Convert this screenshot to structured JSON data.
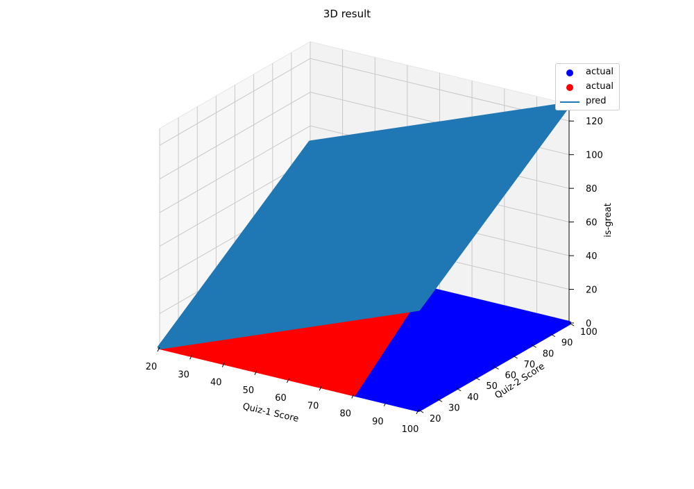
{
  "chart_data": {
    "type": "3d-scatter-surface",
    "title": "3D result",
    "xlabel": "Quiz-1 Score",
    "ylabel": "Quiz-2 Score",
    "zlabel": "is-great",
    "xlim": [
      20,
      100
    ],
    "ylim": [
      20,
      100
    ],
    "zlim": [
      0,
      130
    ],
    "x_ticks": [
      20,
      30,
      40,
      50,
      60,
      70,
      80,
      90,
      100
    ],
    "y_ticks": [
      20,
      30,
      40,
      50,
      60,
      70,
      80,
      90,
      100
    ],
    "z_ticks": [
      0,
      20,
      40,
      60,
      80,
      100,
      120
    ],
    "series": [
      {
        "name": "actual",
        "kind": "scatter",
        "color": "#0000ff",
        "region": [
          [
            100,
            20,
            0
          ],
          [
            100,
            100,
            0
          ],
          [
            55,
            100,
            0
          ],
          [
            20,
            100,
            0
          ],
          [
            80,
            20,
            0
          ]
        ]
      },
      {
        "name": "actual",
        "kind": "scatter",
        "color": "#ff0000",
        "region": [
          [
            20,
            20,
            0
          ],
          [
            80,
            20,
            0
          ],
          [
            55,
            100,
            0
          ],
          [
            20,
            100,
            0
          ]
        ]
      },
      {
        "name": "pred",
        "kind": "surface",
        "color": "#1f77b4",
        "corners": [
          [
            20,
            20,
            0
          ],
          [
            100,
            20,
            60
          ],
          [
            100,
            100,
            130
          ],
          [
            20,
            100,
            70
          ]
        ]
      }
    ],
    "legend": {
      "placement": "upper-right"
    }
  }
}
